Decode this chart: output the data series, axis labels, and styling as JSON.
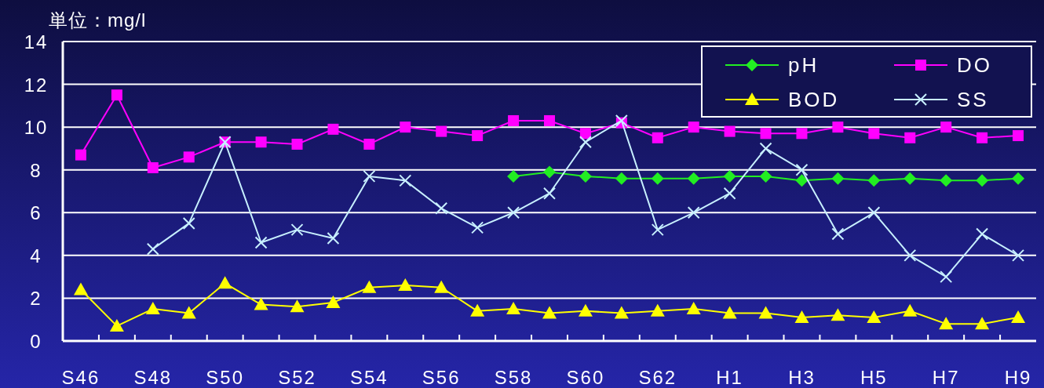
{
  "chart_data": {
    "type": "line",
    "ylabel": "単位：mg/l",
    "categories": [
      "S46",
      null,
      "S48",
      null,
      "S50",
      null,
      "S52",
      null,
      "S54",
      null,
      "S56",
      null,
      "S58",
      null,
      "S60",
      null,
      "S62",
      null,
      "H1",
      null,
      "H3",
      null,
      "H5",
      null,
      "H7",
      null,
      "H9"
    ],
    "series": [
      {
        "name": "pH",
        "color": "#22ee22",
        "marker": "diamond",
        "values": [
          null,
          null,
          null,
          null,
          null,
          null,
          null,
          null,
          null,
          null,
          null,
          null,
          7.7,
          7.9,
          7.7,
          7.6,
          7.6,
          7.6,
          7.7,
          7.7,
          7.5,
          7.6,
          7.5,
          7.6,
          7.5,
          7.5,
          7.6
        ]
      },
      {
        "name": "DO",
        "color": "#ff00ff",
        "marker": "square",
        "values": [
          8.7,
          11.5,
          8.1,
          8.6,
          9.3,
          9.3,
          9.2,
          9.9,
          9.2,
          10.0,
          9.8,
          9.6,
          10.3,
          10.3,
          9.7,
          10.2,
          9.5,
          10.0,
          9.8,
          9.7,
          9.7,
          10.0,
          9.7,
          9.5,
          10.0,
          9.5,
          9.6
        ]
      },
      {
        "name": "BOD",
        "color": "#ffff00",
        "marker": "triangle",
        "values": [
          2.4,
          0.7,
          1.5,
          1.3,
          2.7,
          1.7,
          1.6,
          1.8,
          2.5,
          2.6,
          2.5,
          1.4,
          1.5,
          1.3,
          1.4,
          1.3,
          1.4,
          1.5,
          1.3,
          1.3,
          1.1,
          1.2,
          1.1,
          1.4,
          0.8,
          0.8,
          1.1
        ]
      },
      {
        "name": "SS",
        "color": "#c8f0ff",
        "marker": "cross",
        "values": [
          null,
          null,
          4.3,
          5.5,
          9.3,
          4.6,
          5.2,
          4.8,
          7.7,
          7.5,
          6.2,
          5.3,
          6.0,
          6.9,
          9.3,
          10.3,
          5.2,
          6.0,
          6.9,
          9.0,
          8.0,
          5.0,
          6.0,
          4.0,
          3.0,
          5.0,
          4.0
        ]
      }
    ],
    "ylim": [
      0,
      14
    ],
    "yticks": [
      0,
      2,
      4,
      6,
      8,
      10,
      12,
      14
    ],
    "grid": "y",
    "legend": "top right",
    "line_style": "solid"
  }
}
